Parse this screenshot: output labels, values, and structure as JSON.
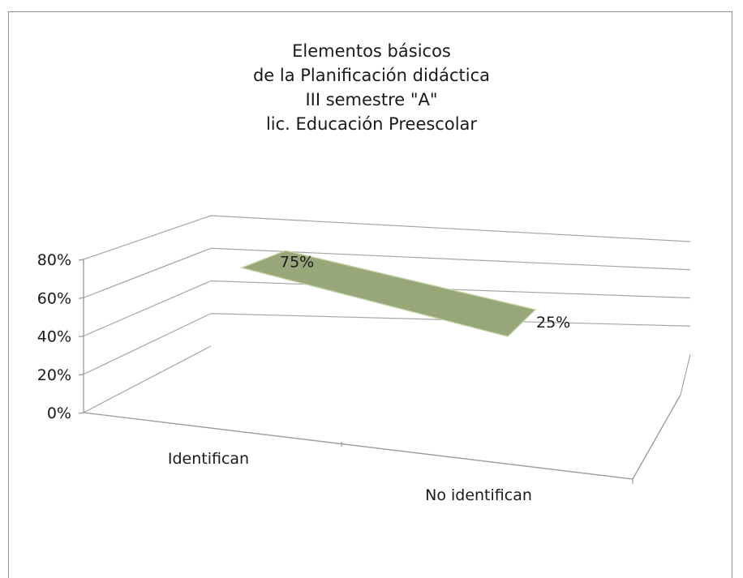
{
  "chart_data": {
    "type": "line",
    "title": [
      "Elementos básicos",
      "de la Planificación didáctica",
      "III semestre \"A\"",
      "lic. Educación Preescolar"
    ],
    "categories": [
      "Identifican",
      "No identifican"
    ],
    "values": [
      75,
      25
    ],
    "data_labels": [
      "75%",
      "25%"
    ],
    "yticks": [
      "0%",
      "20%",
      "40%",
      "60%",
      "80%"
    ],
    "ylim": [
      0,
      80
    ],
    "xlabel": "",
    "ylabel": "",
    "grid": true,
    "style": "3d-line",
    "colors": {
      "series_fill": "#97a77a",
      "series_edge": "#c5d1a2",
      "axis": "#999999",
      "grid": "#a6a6a6"
    }
  }
}
